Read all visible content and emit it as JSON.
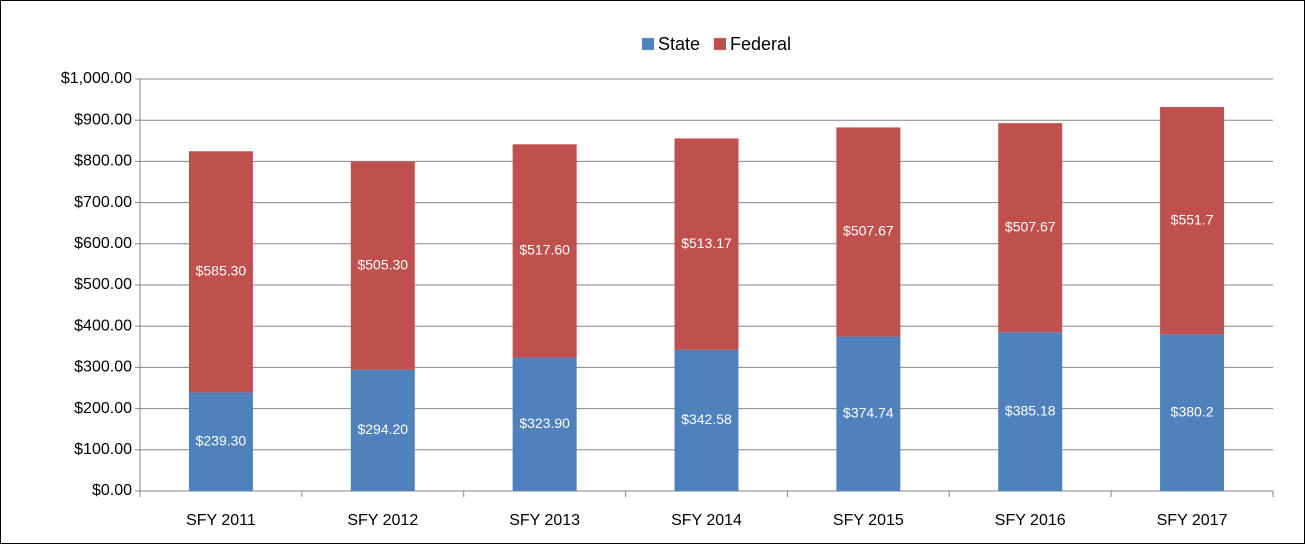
{
  "chart_data": {
    "type": "bar",
    "stacked": true,
    "categories": [
      "SFY 2011",
      "SFY 2012",
      "SFY 2013",
      "SFY 2014",
      "SFY 2015",
      "SFY 2016",
      "SFY 2017"
    ],
    "series": [
      {
        "name": "State",
        "color": "#4f81bd",
        "values": [
          239.3,
          294.2,
          323.9,
          342.58,
          374.74,
          385.18,
          380.2
        ],
        "value_labels": [
          "$239.30",
          "$294.20",
          "$323.90",
          "$342.58",
          "$374.74",
          "$385.18",
          "$380.2"
        ]
      },
      {
        "name": "Federal",
        "color": "#c0504d",
        "values": [
          585.3,
          505.3,
          517.6,
          513.17,
          507.67,
          507.67,
          551.7
        ],
        "value_labels": [
          "$585.30",
          "$505.30",
          "$517.60",
          "$513.17",
          "$507.67",
          "$507.67",
          "$551.7"
        ]
      }
    ],
    "ylim": [
      0,
      1000
    ],
    "yticks": [
      {
        "value": 0,
        "label": "$0.00"
      },
      {
        "value": 100,
        "label": "$100.00"
      },
      {
        "value": 200,
        "label": "$200.00"
      },
      {
        "value": 300,
        "label": "$300.00"
      },
      {
        "value": 400,
        "label": "$400.00"
      },
      {
        "value": 500,
        "label": "$500.00"
      },
      {
        "value": 600,
        "label": "$600.00"
      },
      {
        "value": 700,
        "label": "$700.00"
      },
      {
        "value": 800,
        "label": "$800.00"
      },
      {
        "value": 900,
        "label": "$900.00"
      },
      {
        "value": 1000,
        "label": "$1,000.00"
      }
    ],
    "grid": true,
    "legend": "top"
  }
}
